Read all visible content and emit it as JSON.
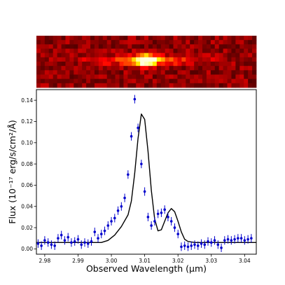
{
  "chart_data": [
    {
      "type": "heatmap",
      "description_of_content": "2D spectrum strip with a bright compact emission feature",
      "colormap": "hot",
      "peak_color": "#ffffaa",
      "background_color": "#2a0000"
    },
    {
      "type": "scatter",
      "xlabel": "Observed Wavelength (μm)",
      "ylabel": "Flux (10⁻¹⁷ erg/s/cm²/Å)",
      "xlim": [
        2.9775,
        3.0435
      ],
      "ylim": [
        -0.005,
        0.15
      ],
      "xticks": [
        "2.98",
        "2.99",
        "3.00",
        "3.01",
        "3.02",
        "3.03",
        "3.04"
      ],
      "xtick_values": [
        2.98,
        2.99,
        3.0,
        3.01,
        3.02,
        3.03,
        3.04
      ],
      "yticks": [
        "0.00",
        "0.02",
        "0.04",
        "0.06",
        "0.08",
        "0.10",
        "0.12",
        "0.14"
      ],
      "ytick_values": [
        0.0,
        0.02,
        0.04,
        0.06,
        0.08,
        0.1,
        0.12,
        0.14
      ],
      "grid": false,
      "series": [
        {
          "kind": "errorbar",
          "color": "#0000cc",
          "x": [
            2.978,
            2.979,
            2.98,
            2.981,
            2.982,
            2.983,
            2.984,
            2.985,
            2.986,
            2.987,
            2.988,
            2.989,
            2.99,
            2.991,
            2.992,
            2.993,
            2.994,
            2.995,
            2.996,
            2.997,
            2.998,
            2.999,
            3.0,
            3.001,
            3.002,
            3.003,
            3.004,
            3.005,
            3.006,
            3.007,
            3.008,
            3.009,
            3.01,
            3.011,
            3.012,
            3.013,
            3.014,
            3.015,
            3.016,
            3.017,
            3.018,
            3.019,
            3.02,
            3.021,
            3.022,
            3.023,
            3.024,
            3.025,
            3.026,
            3.027,
            3.028,
            3.029,
            3.03,
            3.031,
            3.032,
            3.033,
            3.034,
            3.035,
            3.036,
            3.037,
            3.038,
            3.039,
            3.04,
            3.041,
            3.042
          ],
          "y": [
            0.005,
            0.003,
            0.008,
            0.006,
            0.004,
            0.003,
            0.01,
            0.013,
            0.008,
            0.011,
            0.006,
            0.007,
            0.009,
            0.004,
            0.006,
            0.005,
            0.007,
            0.016,
            0.01,
            0.014,
            0.017,
            0.022,
            0.026,
            0.029,
            0.036,
            0.04,
            0.048,
            0.07,
            0.106,
            0.141,
            0.114,
            0.08,
            0.054,
            0.03,
            0.022,
            0.026,
            0.033,
            0.034,
            0.037,
            0.03,
            0.026,
            0.02,
            0.014,
            0.002,
            0.003,
            0.002,
            0.003,
            0.004,
            0.003,
            0.005,
            0.004,
            0.007,
            0.006,
            0.008,
            0.004,
            0.001,
            0.008,
            0.009,
            0.008,
            0.009,
            0.01,
            0.01,
            0.008,
            0.009,
            0.01
          ],
          "yerr": 0.004
        },
        {
          "kind": "line",
          "color": "#000000",
          "x": [
            2.9775,
            2.997,
            2.999,
            3.001,
            3.003,
            3.005,
            3.006,
            3.007,
            3.008,
            3.009,
            3.01,
            3.011,
            3.012,
            3.013,
            3.014,
            3.015,
            3.016,
            3.017,
            3.018,
            3.019,
            3.02,
            3.021,
            3.022,
            3.023,
            3.025,
            3.0435
          ],
          "y": [
            0.006,
            0.006,
            0.008,
            0.013,
            0.021,
            0.032,
            0.045,
            0.071,
            0.104,
            0.127,
            0.122,
            0.092,
            0.055,
            0.028,
            0.017,
            0.018,
            0.026,
            0.034,
            0.038,
            0.035,
            0.026,
            0.016,
            0.009,
            0.007,
            0.006,
            0.006
          ]
        }
      ]
    }
  ]
}
